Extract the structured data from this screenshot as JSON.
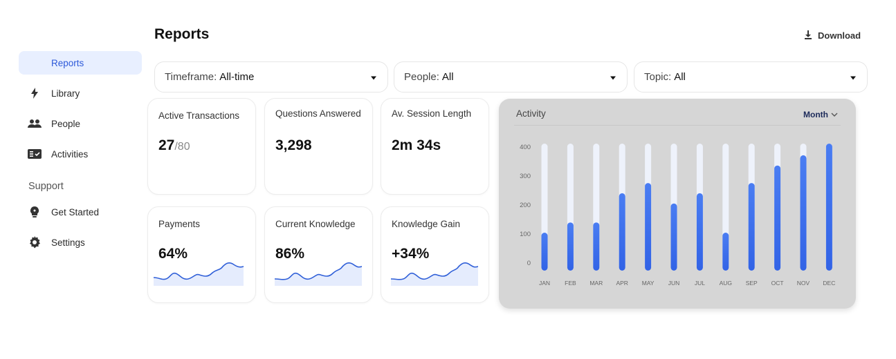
{
  "header": {
    "title": "Reports",
    "download_label": "Download"
  },
  "sidebar": {
    "items": [
      {
        "label": "Reports",
        "icon": "reports-icon"
      },
      {
        "label": "Library",
        "icon": "lightning-icon"
      },
      {
        "label": "People",
        "icon": "people-icon"
      },
      {
        "label": "Activities",
        "icon": "activities-icon"
      }
    ],
    "support_title": "Support",
    "support_items": [
      {
        "label": "Get Started",
        "icon": "lightbulb-icon"
      },
      {
        "label": "Settings",
        "icon": "gear-icon"
      }
    ]
  },
  "filters": [
    {
      "key": "Timeframe:",
      "value": "All-time"
    },
    {
      "key": "People:",
      "value": "All"
    },
    {
      "key": "Topic:",
      "value": "All"
    }
  ],
  "stats": [
    {
      "label": "Active Transactions",
      "value": "27",
      "total": "/80"
    },
    {
      "label": "Questions Answered",
      "value": "3,298"
    },
    {
      "label": "Av. Session Length",
      "value": "2m 34s"
    },
    {
      "label": "Payments",
      "value": "64%"
    },
    {
      "label": "Current Knowledge",
      "value": "86%"
    },
    {
      "label": "Knowledge Gain",
      "value": "+34%"
    }
  ],
  "activity": {
    "title": "Activity",
    "period": "Month"
  },
  "colors": {
    "accent": "#3a6ff0",
    "active_bg": "#e8efff",
    "panel_bg": "#d6d6d6"
  },
  "chart_data": {
    "type": "bar",
    "title": "Activity",
    "categories": [
      "JAN",
      "FEB",
      "MAR",
      "APR",
      "MAY",
      "JUN",
      "JUL",
      "AUG",
      "SEP",
      "OCT",
      "NOV",
      "DEC"
    ],
    "values": [
      130,
      165,
      165,
      265,
      300,
      230,
      265,
      130,
      300,
      360,
      395,
      435
    ],
    "ylim": [
      0,
      435
    ],
    "yticks": [
      0,
      100,
      200,
      300,
      400
    ],
    "grid": false
  }
}
